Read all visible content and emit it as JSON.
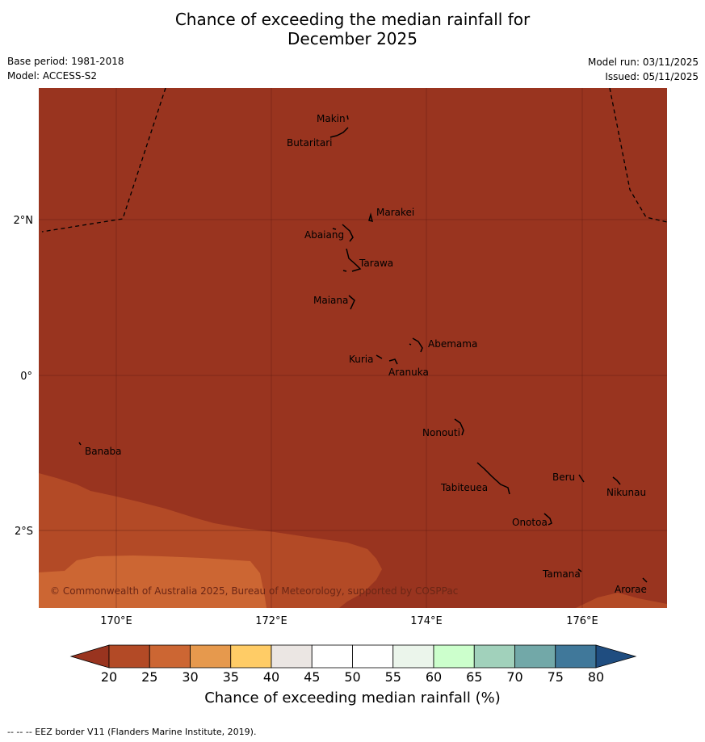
{
  "header": {
    "title_line1": "Chance of exceeding the median rainfall for",
    "title_line2": "December 2025",
    "base_period": "Base period: 1981-2018",
    "model": "Model: ACCESS-S2",
    "model_run": "Model run: 03/11/2025",
    "issued": "Issued: 05/11/2025"
  },
  "map": {
    "copyright": "© Commonwealth of Australia 2025, Bureau of Meteorology, supported by COSPPac",
    "lon_ticks": [
      "170°E",
      "172°E",
      "174°E",
      "176°E"
    ],
    "lat_ticks": [
      "2°N",
      "0°",
      "2°S"
    ],
    "places": [
      {
        "name": "Makin"
      },
      {
        "name": "Butaritari"
      },
      {
        "name": "Marakei"
      },
      {
        "name": "Abaiang"
      },
      {
        "name": "Tarawa"
      },
      {
        "name": "Maiana"
      },
      {
        "name": "Abemama"
      },
      {
        "name": "Kuria"
      },
      {
        "name": "Aranuka"
      },
      {
        "name": "Nonouti"
      },
      {
        "name": "Banaba"
      },
      {
        "name": "Beru"
      },
      {
        "name": "Tabiteuea"
      },
      {
        "name": "Nikunau"
      },
      {
        "name": "Onotoa"
      },
      {
        "name": "Tamana"
      },
      {
        "name": "Arorae"
      }
    ],
    "colors": {
      "below_20": "#99341f",
      "20_25": "#b34a26",
      "25_30": "#cc6633"
    }
  },
  "colorbar": {
    "title": "Chance of exceeding median rainfall (%)",
    "ticks": [
      "20",
      "25",
      "30",
      "35",
      "40",
      "45",
      "50",
      "55",
      "60",
      "65",
      "70",
      "75",
      "80"
    ],
    "colors": [
      "#b34a26",
      "#cc6633",
      "#e6994d",
      "#ffcc66",
      "#ebe6e3",
      "#ffffff",
      "#ffffff",
      "#ebf5eb",
      "#ccffcc",
      "#a1d1bb",
      "#72a8a8",
      "#40789a"
    ],
    "under_color": "#99341f",
    "over_color": "#1f4d80"
  },
  "footer": {
    "eez_note": "-- -- -- EEZ border V11 (Flanders Marine Institute, 2019)."
  }
}
